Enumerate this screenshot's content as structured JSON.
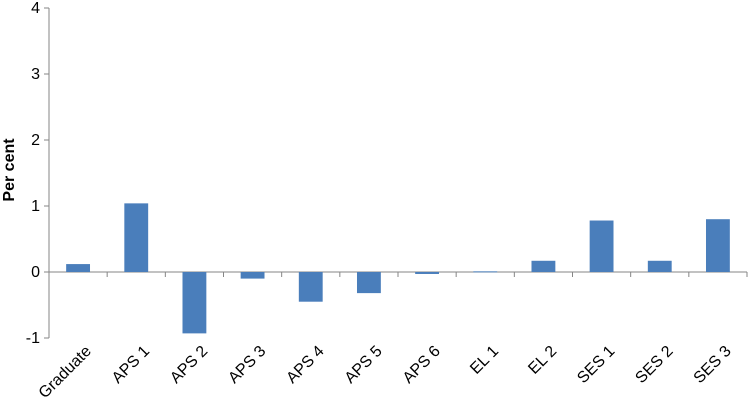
{
  "chart_data": {
    "type": "bar",
    "title": "",
    "xlabel": "",
    "ylabel": "Per cent",
    "ylim": [
      -1,
      4
    ],
    "yticks": [
      -1,
      0,
      1,
      2,
      3,
      4
    ],
    "ytick_labels": [
      "-1",
      "0",
      "1",
      "2",
      "3",
      "4"
    ],
    "grid": false,
    "categories": [
      "Graduate",
      "APS 1",
      "APS 2",
      "APS 3",
      "APS 4",
      "APS 5",
      "APS 6",
      "EL 1",
      "EL 2",
      "SES 1",
      "SES 2",
      "SES 3"
    ],
    "values": [
      0.12,
      1.04,
      -0.93,
      -0.1,
      -0.45,
      -0.32,
      -0.03,
      0.01,
      0.17,
      0.78,
      0.17,
      0.8
    ],
    "bar_color": "#4a7ebb"
  }
}
